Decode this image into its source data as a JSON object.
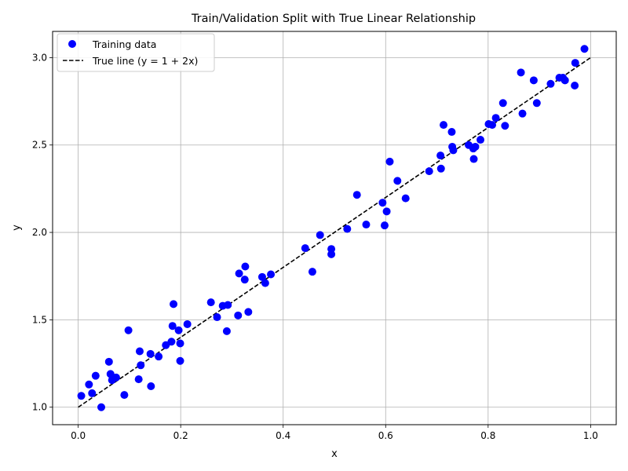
{
  "chart_data": {
    "type": "scatter",
    "title": "Train/Validation Split with True Linear Relationship",
    "xlabel": "x",
    "ylabel": "y",
    "xlim": [
      -0.05,
      1.05
    ],
    "ylim": [
      0.9,
      3.15
    ],
    "xticks": [
      0.0,
      0.2,
      0.4,
      0.6,
      0.8,
      1.0
    ],
    "xtick_labels": [
      "0.0",
      "0.2",
      "0.4",
      "0.6",
      "0.8",
      "1.0"
    ],
    "yticks": [
      1.0,
      1.5,
      2.0,
      2.5,
      3.0
    ],
    "ytick_labels": [
      "1.0",
      "1.5",
      "2.0",
      "2.5",
      "3.0"
    ],
    "grid": true,
    "legend_position": "top-left",
    "series": [
      {
        "name": "Training data",
        "kind": "scatter",
        "color": "#0000ff",
        "points": [
          [
            0.006,
            1.065
          ],
          [
            0.021,
            1.13
          ],
          [
            0.027,
            1.08
          ],
          [
            0.034,
            1.18
          ],
          [
            0.045,
            1.0
          ],
          [
            0.06,
            1.26
          ],
          [
            0.063,
            1.19
          ],
          [
            0.066,
            1.155
          ],
          [
            0.074,
            1.17
          ],
          [
            0.09,
            1.07
          ],
          [
            0.098,
            1.44
          ],
          [
            0.118,
            1.16
          ],
          [
            0.12,
            1.32
          ],
          [
            0.122,
            1.24
          ],
          [
            0.141,
            1.305
          ],
          [
            0.142,
            1.12
          ],
          [
            0.157,
            1.29
          ],
          [
            0.171,
            1.355
          ],
          [
            0.182,
            1.375
          ],
          [
            0.184,
            1.465
          ],
          [
            0.186,
            1.59
          ],
          [
            0.196,
            1.44
          ],
          [
            0.199,
            1.365
          ],
          [
            0.199,
            1.265
          ],
          [
            0.213,
            1.475
          ],
          [
            0.259,
            1.6
          ],
          [
            0.271,
            1.515
          ],
          [
            0.282,
            1.58
          ],
          [
            0.29,
            1.435
          ],
          [
            0.292,
            1.585
          ],
          [
            0.312,
            1.525
          ],
          [
            0.314,
            1.765
          ],
          [
            0.325,
            1.73
          ],
          [
            0.326,
            1.805
          ],
          [
            0.332,
            1.545
          ],
          [
            0.359,
            1.745
          ],
          [
            0.365,
            1.71
          ],
          [
            0.376,
            1.76
          ],
          [
            0.443,
            1.91
          ],
          [
            0.457,
            1.775
          ],
          [
            0.472,
            1.985
          ],
          [
            0.494,
            1.905
          ],
          [
            0.494,
            1.875
          ],
          [
            0.525,
            2.02
          ],
          [
            0.544,
            2.215
          ],
          [
            0.562,
            2.045
          ],
          [
            0.594,
            2.17
          ],
          [
            0.598,
            2.04
          ],
          [
            0.602,
            2.12
          ],
          [
            0.608,
            2.405
          ],
          [
            0.623,
            2.295
          ],
          [
            0.639,
            2.195
          ],
          [
            0.685,
            2.35
          ],
          [
            0.707,
            2.44
          ],
          [
            0.708,
            2.365
          ],
          [
            0.713,
            2.615
          ],
          [
            0.729,
            2.575
          ],
          [
            0.73,
            2.49
          ],
          [
            0.732,
            2.47
          ],
          [
            0.762,
            2.5
          ],
          [
            0.771,
            2.48
          ],
          [
            0.772,
            2.42
          ],
          [
            0.775,
            2.49
          ],
          [
            0.785,
            2.53
          ],
          [
            0.801,
            2.62
          ],
          [
            0.808,
            2.615
          ],
          [
            0.815,
            2.655
          ],
          [
            0.829,
            2.74
          ],
          [
            0.833,
            2.61
          ],
          [
            0.864,
            2.915
          ],
          [
            0.867,
            2.68
          ],
          [
            0.889,
            2.87
          ],
          [
            0.895,
            2.74
          ],
          [
            0.922,
            2.85
          ],
          [
            0.939,
            2.885
          ],
          [
            0.946,
            2.885
          ],
          [
            0.95,
            2.87
          ],
          [
            0.969,
            2.84
          ],
          [
            0.97,
            2.97
          ],
          [
            0.988,
            3.05
          ]
        ]
      },
      {
        "name": "True line (y = 1 + 2x)",
        "kind": "line",
        "color": "#000000",
        "dash": true,
        "x": [
          0.0,
          1.0
        ],
        "y": [
          1.0,
          3.0
        ]
      }
    ]
  }
}
